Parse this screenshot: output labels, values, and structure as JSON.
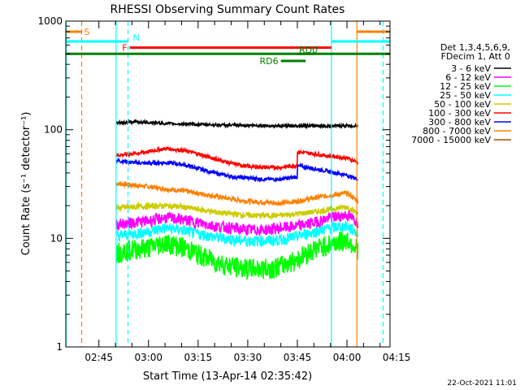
{
  "chart_data": {
    "type": "line",
    "title": "RHESSI Observing Summary Count Rates",
    "xlabel": "Start Time (13-Apr-14 02:35:42)",
    "ylabel": "Count Rate (s⁻¹ detector⁻¹)",
    "y_scale": "log",
    "ylim": [
      1,
      1000
    ],
    "y_ticks": [
      {
        "value": 1,
        "label": "1"
      },
      {
        "value": 10,
        "label": "10"
      },
      {
        "value": 100,
        "label": "100"
      },
      {
        "value": 1000,
        "label": "1000"
      }
    ],
    "xlim_minutes": [
      0,
      98
    ],
    "x_ticks": [
      {
        "t": 10,
        "label": "02:45"
      },
      {
        "t": 25,
        "label": "03:00"
      },
      {
        "t": 40,
        "label": "03:15"
      },
      {
        "t": 55,
        "label": "03:30"
      },
      {
        "t": 70,
        "label": "03:45"
      },
      {
        "t": 85,
        "label": "04:00"
      },
      {
        "t": 100,
        "label": "04:15"
      }
    ],
    "legend_header": [
      "Det 1,3,4,5,6,9,",
      "FDecim 1, Att 0"
    ],
    "legend_placement": "right",
    "data_interval_minutes": [
      15.2,
      88.3
    ],
    "series": [
      {
        "name": "3 - 6 keV",
        "color": "#000000",
        "t": [
          15.2,
          20,
          25,
          30,
          35,
          40,
          45,
          50,
          55,
          60,
          65,
          70,
          75,
          80,
          85,
          88.3
        ],
        "values": [
          115,
          118,
          117,
          114,
          113,
          112,
          111,
          110,
          110,
          109,
          108,
          109,
          109,
          108,
          109,
          108
        ]
      },
      {
        "name": "6 - 12 keV",
        "color": "#ff00ff",
        "t": [
          15.2,
          20,
          25,
          30,
          35,
          40,
          45,
          50,
          55,
          60,
          65,
          70,
          75,
          80,
          85,
          88.3
        ],
        "values": [
          13.5,
          14,
          14.5,
          15.5,
          15,
          14,
          13,
          12.5,
          12,
          12,
          12.5,
          13,
          14,
          15.5,
          16.5,
          14
        ]
      },
      {
        "name": "12 - 25 keV",
        "color": "#00ff00",
        "t": [
          15.2,
          20,
          25,
          30,
          35,
          40,
          45,
          50,
          55,
          60,
          65,
          70,
          75,
          80,
          85,
          88.3
        ],
        "values": [
          7.5,
          8,
          8.3,
          9.2,
          8.5,
          7.2,
          6.2,
          5.6,
          5.3,
          5.3,
          5.6,
          6.5,
          8,
          9,
          9.8,
          8
        ]
      },
      {
        "name": "25 - 50 keV",
        "color": "#00ffff",
        "t": [
          15.2,
          20,
          25,
          30,
          35,
          40,
          45,
          50,
          55,
          60,
          65,
          70,
          75,
          80,
          85,
          88.3
        ],
        "values": [
          10.5,
          11,
          11.5,
          12.5,
          12,
          11,
          10.3,
          9.8,
          9.5,
          9.5,
          9.7,
          10.5,
          11.5,
          12.5,
          13,
          11
        ]
      },
      {
        "name": "50 - 100 keV",
        "color": "#cccc00",
        "t": [
          15.2,
          20,
          25,
          30,
          35,
          40,
          45,
          50,
          55,
          60,
          65,
          70,
          75,
          80,
          85,
          88.3
        ],
        "values": [
          19,
          19.5,
          19.8,
          20,
          19.5,
          18.5,
          17.5,
          16.8,
          16.3,
          16.2,
          16.3,
          16.8,
          17.5,
          18.5,
          19.5,
          17
        ]
      },
      {
        "name": "100 - 300 keV",
        "color": "#ff0000",
        "t": [
          15.2,
          20,
          25,
          30,
          35,
          40,
          45,
          50,
          55,
          60,
          65,
          70,
          71,
          75,
          80,
          85,
          88.3
        ],
        "values": [
          58,
          60,
          63,
          67,
          65,
          60,
          54,
          49,
          46,
          45,
          45,
          47,
          62,
          60,
          57,
          55,
          50
        ]
      },
      {
        "name": "300 - 800 keV",
        "color": "#0000ff",
        "t": [
          15.2,
          20,
          25,
          30,
          35,
          40,
          45,
          50,
          55,
          60,
          65,
          70,
          71,
          75,
          80,
          85,
          88.3
        ],
        "values": [
          52,
          50,
          49,
          50,
          48,
          44,
          40,
          37,
          36,
          35,
          35,
          37,
          46,
          44,
          41,
          38,
          35
        ]
      },
      {
        "name": "800 - 7000 keV",
        "color": "#ff8000",
        "t": [
          15.2,
          20,
          25,
          30,
          35,
          40,
          45,
          50,
          55,
          60,
          65,
          70,
          75,
          80,
          85,
          88.3
        ],
        "values": [
          32,
          31,
          30,
          28.5,
          27.5,
          26,
          24.5,
          23,
          22,
          21.5,
          21,
          22,
          23.5,
          25,
          26,
          22
        ]
      },
      {
        "name": "7000 - 15000 keV",
        "color": "#a05000",
        "t": [
          15.2,
          20,
          25,
          30,
          35,
          40,
          45,
          50,
          55,
          60,
          65,
          70,
          75,
          80,
          85,
          88.3
        ],
        "values": [
          0,
          0,
          0,
          0,
          0,
          0,
          0,
          0,
          0,
          0,
          0,
          0,
          0,
          0,
          0,
          0
        ]
      }
    ],
    "vertical_lines": [
      {
        "t": 0.1,
        "color": "#00ffff",
        "style": "solid"
      },
      {
        "t": 4.8,
        "color": "#ff8000",
        "style": "dashed"
      },
      {
        "t": 15.2,
        "color": "#00ffff",
        "style": "solid"
      },
      {
        "t": 18.8,
        "color": "#00ffff",
        "style": "dashed"
      },
      {
        "t": 80.3,
        "color": "#00ffff",
        "style": "solid"
      },
      {
        "t": 88.0,
        "color": "#ff8000",
        "style": "solid"
      },
      {
        "t": 95.9,
        "color": "#00ffff",
        "style": "dashed"
      }
    ],
    "flag_bars": [
      {
        "label": "S",
        "color": "#ff8000",
        "t0": 0,
        "t1": 4.8,
        "level": 800
      },
      {
        "label": "N",
        "color": "#00ffff",
        "t0": 0,
        "t1": 18.8,
        "level": 650
      },
      {
        "label": "",
        "color": "#00ffff",
        "t0": 80.3,
        "t1": 98,
        "level": 650
      },
      {
        "label": "",
        "color": "#ff8000",
        "t0": 88.0,
        "t1": 98,
        "level": 800
      },
      {
        "label": "F",
        "color": "#ff0000",
        "t0": 19.3,
        "t1": 80.3,
        "level": 570
      },
      {
        "label": "",
        "color": "#008000",
        "t0": 0,
        "t1": 98,
        "level": 500
      },
      {
        "label": "RD0",
        "color": "#008000",
        "t0": 70,
        "t1": 75,
        "level": 500
      },
      {
        "label": "RD6",
        "color": "#008000",
        "t0": 65,
        "t1": 72.5,
        "level": 430
      }
    ]
  },
  "footer": {
    "date_stamp": "22-Oct-2021 11:01"
  }
}
